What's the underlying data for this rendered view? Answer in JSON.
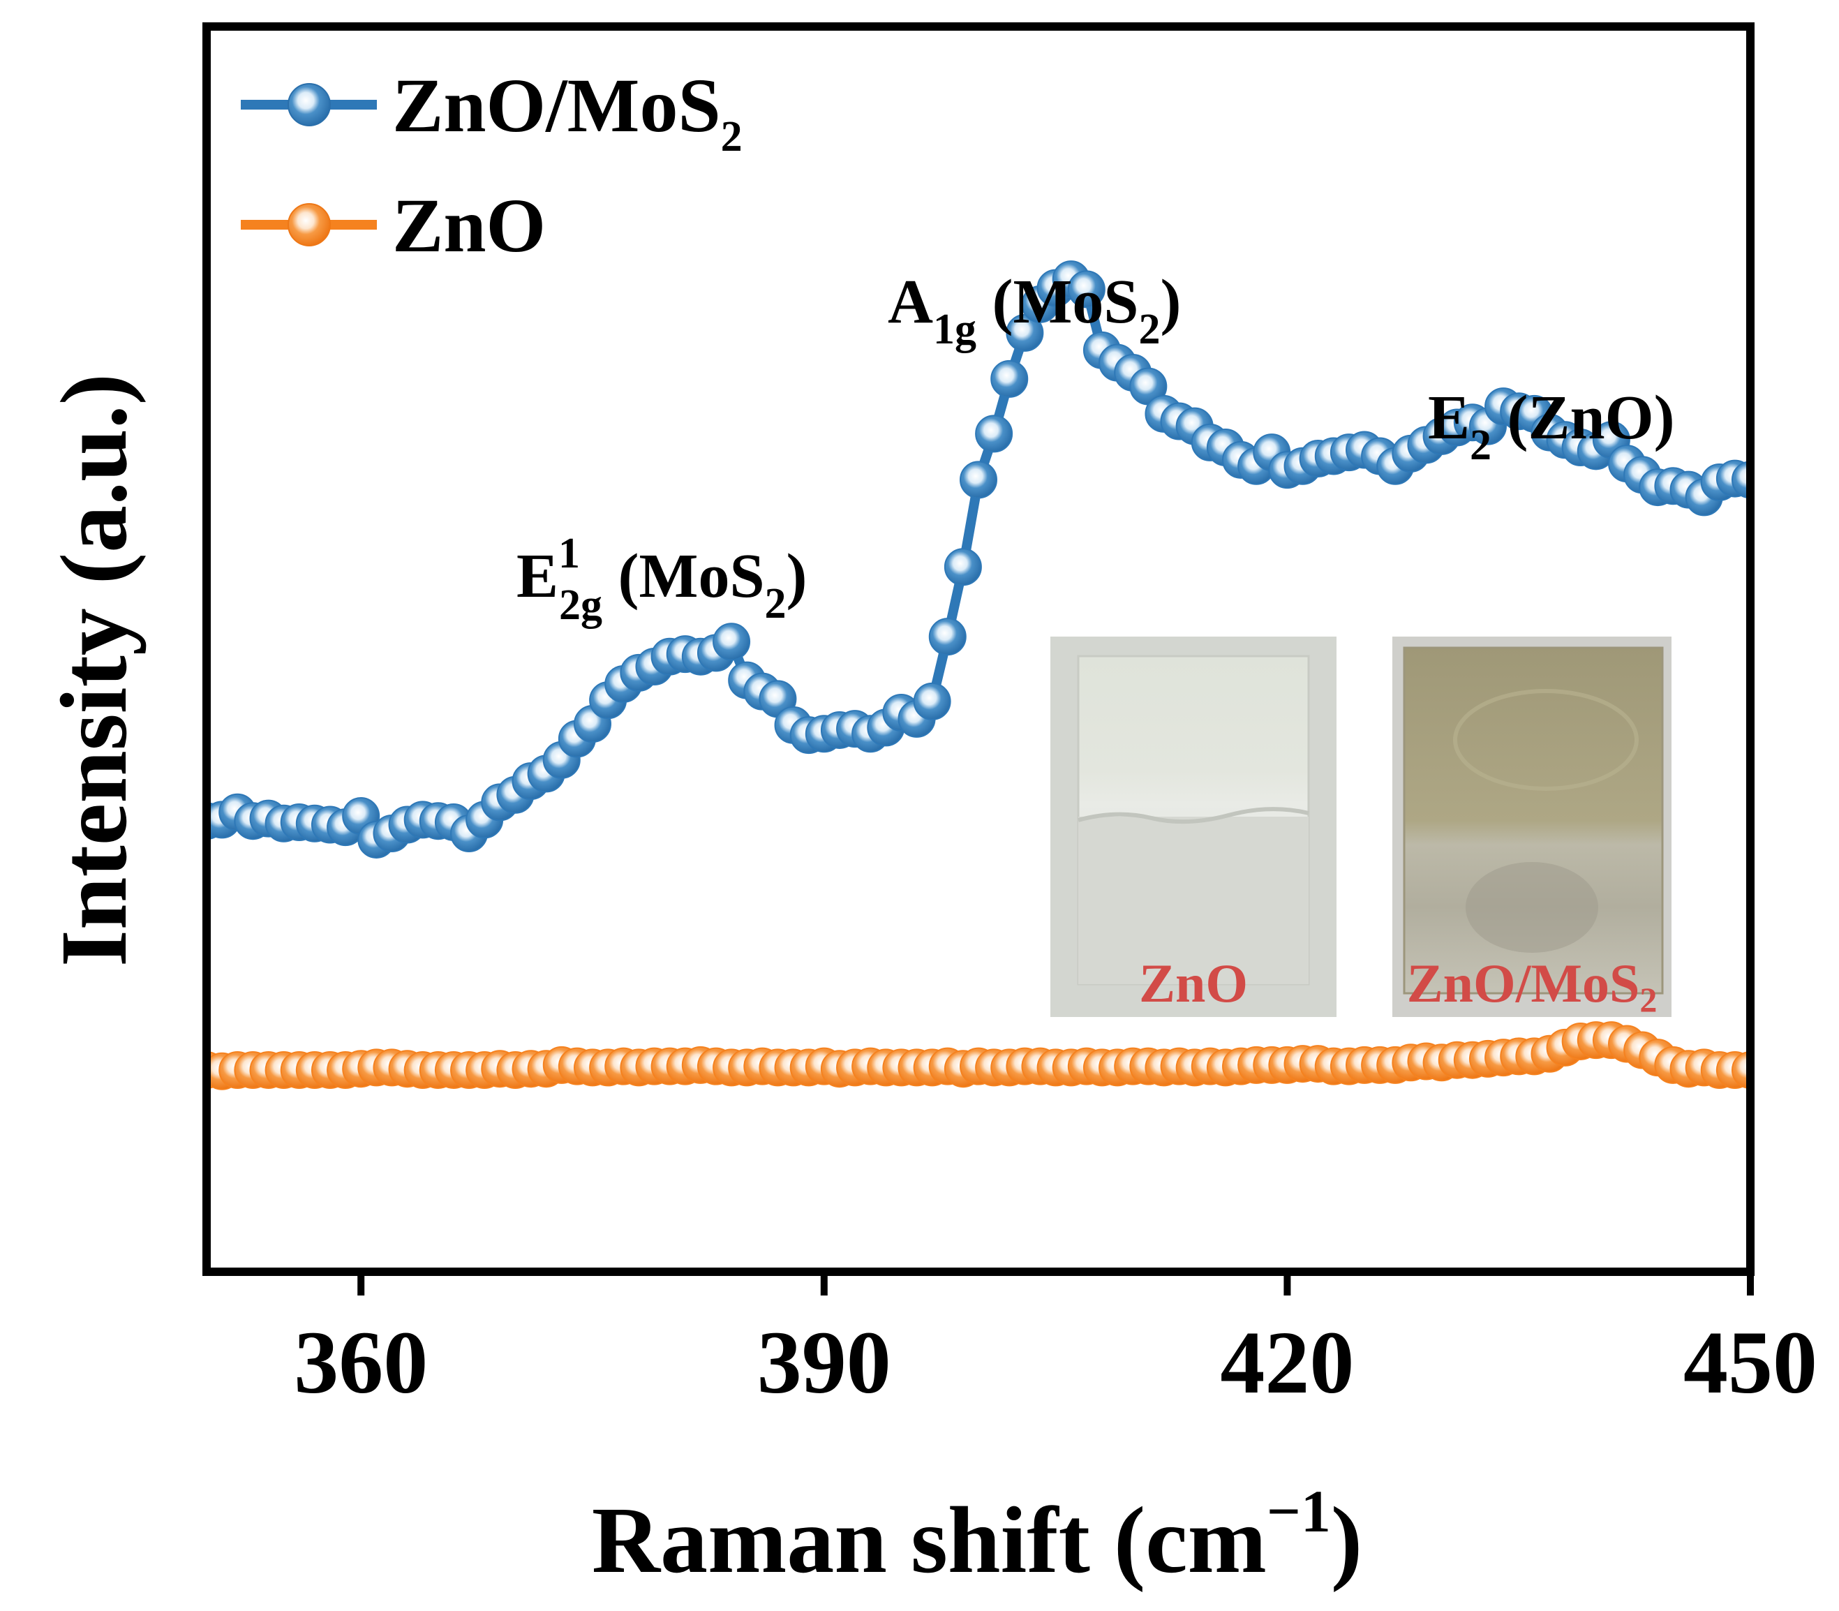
{
  "chart_data": {
    "type": "line",
    "xlabel": "Raman shift (cm",
    "xlabel_exp": "−1",
    "xlabel_close": ")",
    "ylabel": "Intensity (a.u.)",
    "xlim": [
      350,
      450
    ],
    "ylim": [
      0,
      100
    ],
    "xticks": [
      360,
      390,
      420,
      450
    ],
    "xtick_labels": [
      "360",
      "390",
      "420",
      "450"
    ],
    "y_ticks_shown": false,
    "legend_position": "top-left",
    "series": [
      {
        "name": "ZnO/MoS2",
        "legend_main": "ZnO/MoS",
        "legend_sub": "2",
        "color": "#2e78b7",
        "x": [
          350,
          351,
          352,
          353,
          354,
          355,
          356,
          357,
          358,
          359,
          360,
          361,
          362,
          363,
          364,
          365,
          366,
          367,
          368,
          369,
          370,
          371,
          372,
          373,
          374,
          375,
          376,
          377,
          378,
          379,
          380,
          381,
          382,
          383,
          384,
          385,
          386,
          387,
          388,
          389,
          390,
          391,
          392,
          393,
          394,
          395,
          396,
          397,
          398,
          399,
          400,
          401,
          402,
          403,
          404,
          405,
          406,
          407,
          408,
          409,
          410,
          411,
          412,
          413,
          414,
          415,
          416,
          417,
          418,
          419,
          420,
          421,
          422,
          423,
          424,
          425,
          426,
          427,
          428,
          429,
          430,
          431,
          432,
          433,
          434,
          435,
          436,
          437,
          438,
          439,
          440,
          441,
          442,
          443,
          444,
          445,
          446,
          447,
          448,
          449,
          450
        ],
        "y": [
          36.2,
          36.3,
          36.9,
          36.2,
          36.4,
          36.0,
          36.1,
          36.0,
          35.9,
          35.7,
          36.6,
          34.7,
          35.2,
          35.9,
          36.3,
          36.2,
          36.1,
          35.2,
          36.3,
          37.7,
          38.3,
          39.4,
          40.0,
          41.1,
          42.8,
          44.0,
          45.9,
          47.2,
          48.1,
          48.6,
          49.4,
          49.6,
          49.4,
          49.7,
          50.6,
          47.5,
          46.6,
          46.0,
          43.9,
          43.1,
          43.2,
          43.5,
          43.6,
          43.2,
          43.7,
          44.9,
          44.4,
          45.8,
          51.0,
          56.6,
          63.6,
          67.3,
          71.7,
          75.4,
          77.7,
          79.0,
          79.7,
          78.9,
          74.0,
          73.0,
          72.2,
          71.1,
          68.9,
          68.3,
          67.9,
          66.6,
          66.2,
          65.2,
          64.7,
          65.8,
          64.4,
          64.7,
          65.3,
          65.5,
          65.8,
          66.0,
          65.5,
          64.7,
          65.7,
          66.4,
          67.1,
          67.8,
          68.2,
          67.9,
          69.5,
          69.1,
          68.9,
          67.4,
          66.8,
          66.2,
          65.9,
          66.8,
          64.9,
          64.0,
          63.0,
          63.1,
          62.8,
          62.2,
          63.4,
          63.7,
          63.6
        ]
      },
      {
        "name": "ZnO",
        "legend_main": "ZnO",
        "legend_sub": "",
        "color": "#f5821f",
        "x": [
          350,
          351,
          352,
          353,
          354,
          355,
          356,
          357,
          358,
          359,
          360,
          361,
          362,
          363,
          364,
          365,
          366,
          367,
          368,
          369,
          370,
          371,
          372,
          373,
          374,
          375,
          376,
          377,
          378,
          379,
          380,
          381,
          382,
          383,
          384,
          385,
          386,
          387,
          388,
          389,
          390,
          391,
          392,
          393,
          394,
          395,
          396,
          397,
          398,
          399,
          400,
          401,
          402,
          403,
          404,
          405,
          406,
          407,
          408,
          409,
          410,
          411,
          412,
          413,
          414,
          415,
          416,
          417,
          418,
          419,
          420,
          421,
          422,
          423,
          424,
          425,
          426,
          427,
          428,
          429,
          430,
          431,
          432,
          433,
          434,
          435,
          436,
          437,
          438,
          439,
          440,
          441,
          442,
          443,
          444,
          445,
          446,
          447,
          448,
          449,
          450
        ],
        "y": [
          16.2,
          16.1,
          16.2,
          16.2,
          16.2,
          16.2,
          16.2,
          16.2,
          16.2,
          16.2,
          16.3,
          16.4,
          16.4,
          16.3,
          16.2,
          16.2,
          16.2,
          16.2,
          16.2,
          16.3,
          16.2,
          16.3,
          16.3,
          16.6,
          16.5,
          16.4,
          16.4,
          16.5,
          16.4,
          16.5,
          16.5,
          16.5,
          16.6,
          16.5,
          16.4,
          16.4,
          16.5,
          16.4,
          16.4,
          16.4,
          16.5,
          16.3,
          16.4,
          16.5,
          16.4,
          16.4,
          16.4,
          16.4,
          16.5,
          16.3,
          16.5,
          16.4,
          16.4,
          16.5,
          16.5,
          16.4,
          16.4,
          16.5,
          16.4,
          16.4,
          16.5,
          16.5,
          16.4,
          16.5,
          16.4,
          16.5,
          16.4,
          16.5,
          16.6,
          16.6,
          16.6,
          16.7,
          16.7,
          16.5,
          16.5,
          16.6,
          16.6,
          16.6,
          16.8,
          16.9,
          16.8,
          17.0,
          17.0,
          17.1,
          17.2,
          17.3,
          17.3,
          17.5,
          18.0,
          18.5,
          18.6,
          18.6,
          18.3,
          17.8,
          17.2,
          16.6,
          16.3,
          16.4,
          16.2,
          16.2,
          16.2
        ]
      }
    ],
    "annotations": [
      {
        "id": "e12g",
        "main": "E",
        "sup": "1",
        "sub": "2g",
        "rest": " (MoS",
        "rest_sub": "2",
        "close": ")"
      },
      {
        "id": "a1g",
        "main": "A",
        "sub": "1g",
        "rest": " (MoS",
        "rest_sub": "2",
        "close": ")"
      },
      {
        "id": "e2",
        "main": "E",
        "sub": "2",
        "rest": " (ZnO)"
      }
    ],
    "insets": [
      {
        "label_main": "ZnO",
        "label_sub": ""
      },
      {
        "label_main": "ZnO/MoS",
        "label_sub": "2"
      }
    ]
  }
}
